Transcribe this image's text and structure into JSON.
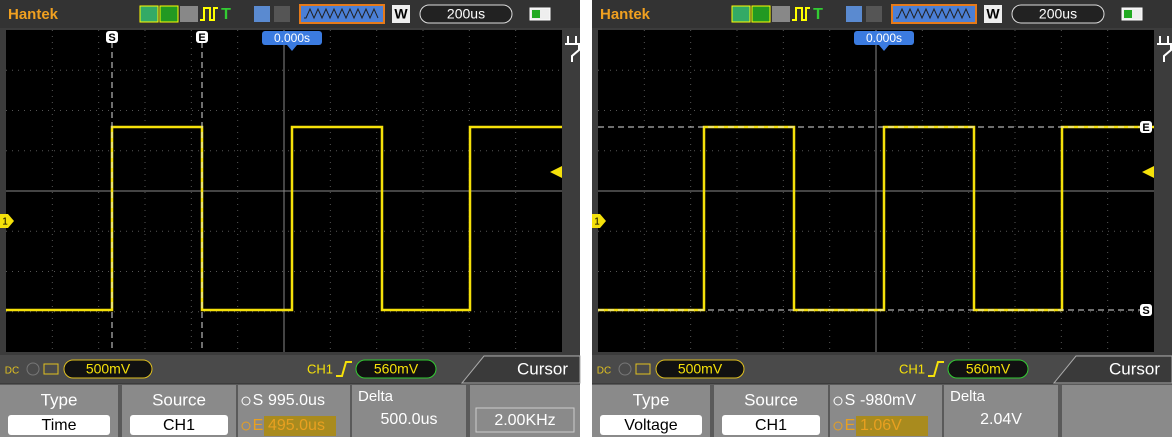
{
  "screens": [
    {
      "brand": "Hantek",
      "trigger_icon": "T",
      "zoom_mode": "W",
      "timebase": "200us",
      "trigger_position": "0.000s",
      "channel_marker": "1",
      "status": {
        "coupling": "DC",
        "ch_scale": "500mV",
        "trigger_source": "CH1",
        "trigger_level": "560mV",
        "mode": "Cursor"
      },
      "menu": {
        "type_label": "Type",
        "type_value": "Time",
        "source_label": "Source",
        "source_value": "CH1",
        "cursors": [
          {
            "label": "S",
            "value": "995.0us"
          },
          {
            "label": "E",
            "value": "495.0us"
          }
        ],
        "delta_label": "Delta",
        "delta_value": "500.0us",
        "frequency": "2.00KHz"
      }
    },
    {
      "brand": "Hantek",
      "trigger_icon": "T",
      "zoom_mode": "W",
      "timebase": "200us",
      "trigger_position": "0.000s",
      "channel_marker": "1",
      "status": {
        "coupling": "DC",
        "ch_scale": "500mV",
        "trigger_source": "CH1",
        "trigger_level": "560mV",
        "mode": "Cursor"
      },
      "menu": {
        "type_label": "Type",
        "type_value": "Voltage",
        "source_label": "Source",
        "source_value": "CH1",
        "cursors": [
          {
            "label": "S",
            "value": "-980mV"
          },
          {
            "label": "E",
            "value": "1.06V"
          }
        ],
        "delta_label": "Delta",
        "delta_value": "2.04V"
      }
    }
  ]
}
